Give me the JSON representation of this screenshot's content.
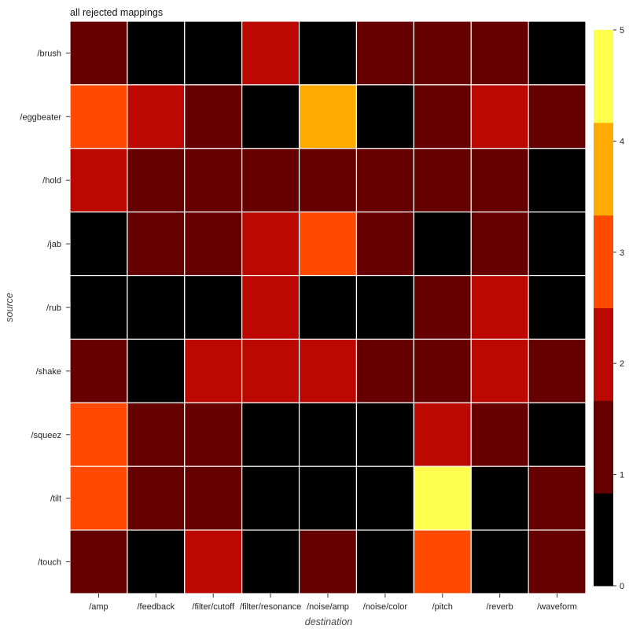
{
  "chart_data": {
    "type": "heatmap",
    "title": "all rejected mappings",
    "xlabel": "destination",
    "ylabel": "source",
    "x_categories": [
      "/amp",
      "/feedback",
      "/filter/cutoff",
      "/filter/resonance",
      "/noise/amp",
      "/noise/color",
      "/pitch",
      "/reverb",
      "/waveform"
    ],
    "y_categories": [
      "/brush",
      "/eggbeater",
      "/hold",
      "/jab",
      "/rub",
      "/shake",
      "/squeez",
      "/tilt",
      "/touch"
    ],
    "values": [
      [
        1,
        0,
        0,
        2,
        0,
        1,
        1,
        1,
        0
      ],
      [
        3,
        2,
        1,
        0,
        4,
        0,
        1,
        2,
        1
      ],
      [
        2,
        1,
        1,
        1,
        1,
        1,
        1,
        1,
        0
      ],
      [
        0,
        1,
        1,
        2,
        3,
        1,
        0,
        1,
        0
      ],
      [
        0,
        0,
        0,
        2,
        0,
        0,
        1,
        2,
        0
      ],
      [
        1,
        0,
        2,
        2,
        2,
        1,
        1,
        2,
        1
      ],
      [
        3,
        1,
        1,
        0,
        0,
        0,
        2,
        1,
        0
      ],
      [
        3,
        1,
        1,
        0,
        0,
        0,
        5,
        0,
        1
      ],
      [
        1,
        0,
        2,
        0,
        1,
        0,
        3,
        0,
        1
      ]
    ],
    "colorbar": {
      "range": [
        0,
        5
      ],
      "ticks": [
        0,
        1,
        2,
        3,
        4,
        5
      ],
      "levels": [
        "#000000",
        "#660000",
        "#bb0800",
        "#ff4a00",
        "#ffab00",
        "#ffff4d"
      ]
    },
    "grid_color": "#ffffff"
  }
}
